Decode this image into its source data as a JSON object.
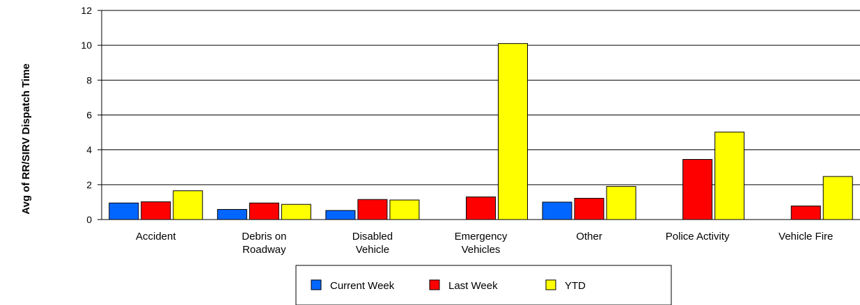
{
  "chart_data": {
    "type": "bar",
    "title": "",
    "xlabel": "",
    "ylabel": "Avg of RR/SIRV Dispatch Time",
    "ylim": [
      0,
      12
    ],
    "yticks": [
      "0",
      "2",
      "4",
      "6",
      "8",
      "10",
      "12"
    ],
    "grid": true,
    "legend_position": "bottom",
    "categories": [
      [
        "Accident"
      ],
      [
        "Debris on",
        "Roadway"
      ],
      [
        "Disabled",
        "Vehicle"
      ],
      [
        "Emergency",
        "Vehicles"
      ],
      [
        "Other"
      ],
      [
        "Police Activity"
      ],
      [
        "Vehicle Fire"
      ]
    ],
    "series": [
      {
        "name": "Current Week",
        "color": "#0066ff",
        "values": [
          0.95,
          0.58,
          0.52,
          null,
          1.0,
          null,
          null
        ]
      },
      {
        "name": "Last Week",
        "color": "#ff0000",
        "values": [
          1.02,
          0.95,
          1.15,
          1.3,
          1.22,
          3.45,
          0.78
        ]
      },
      {
        "name": "YTD",
        "color": "#ffff00",
        "values": [
          1.65,
          0.87,
          1.12,
          10.1,
          1.9,
          5.02,
          2.47
        ]
      }
    ]
  }
}
